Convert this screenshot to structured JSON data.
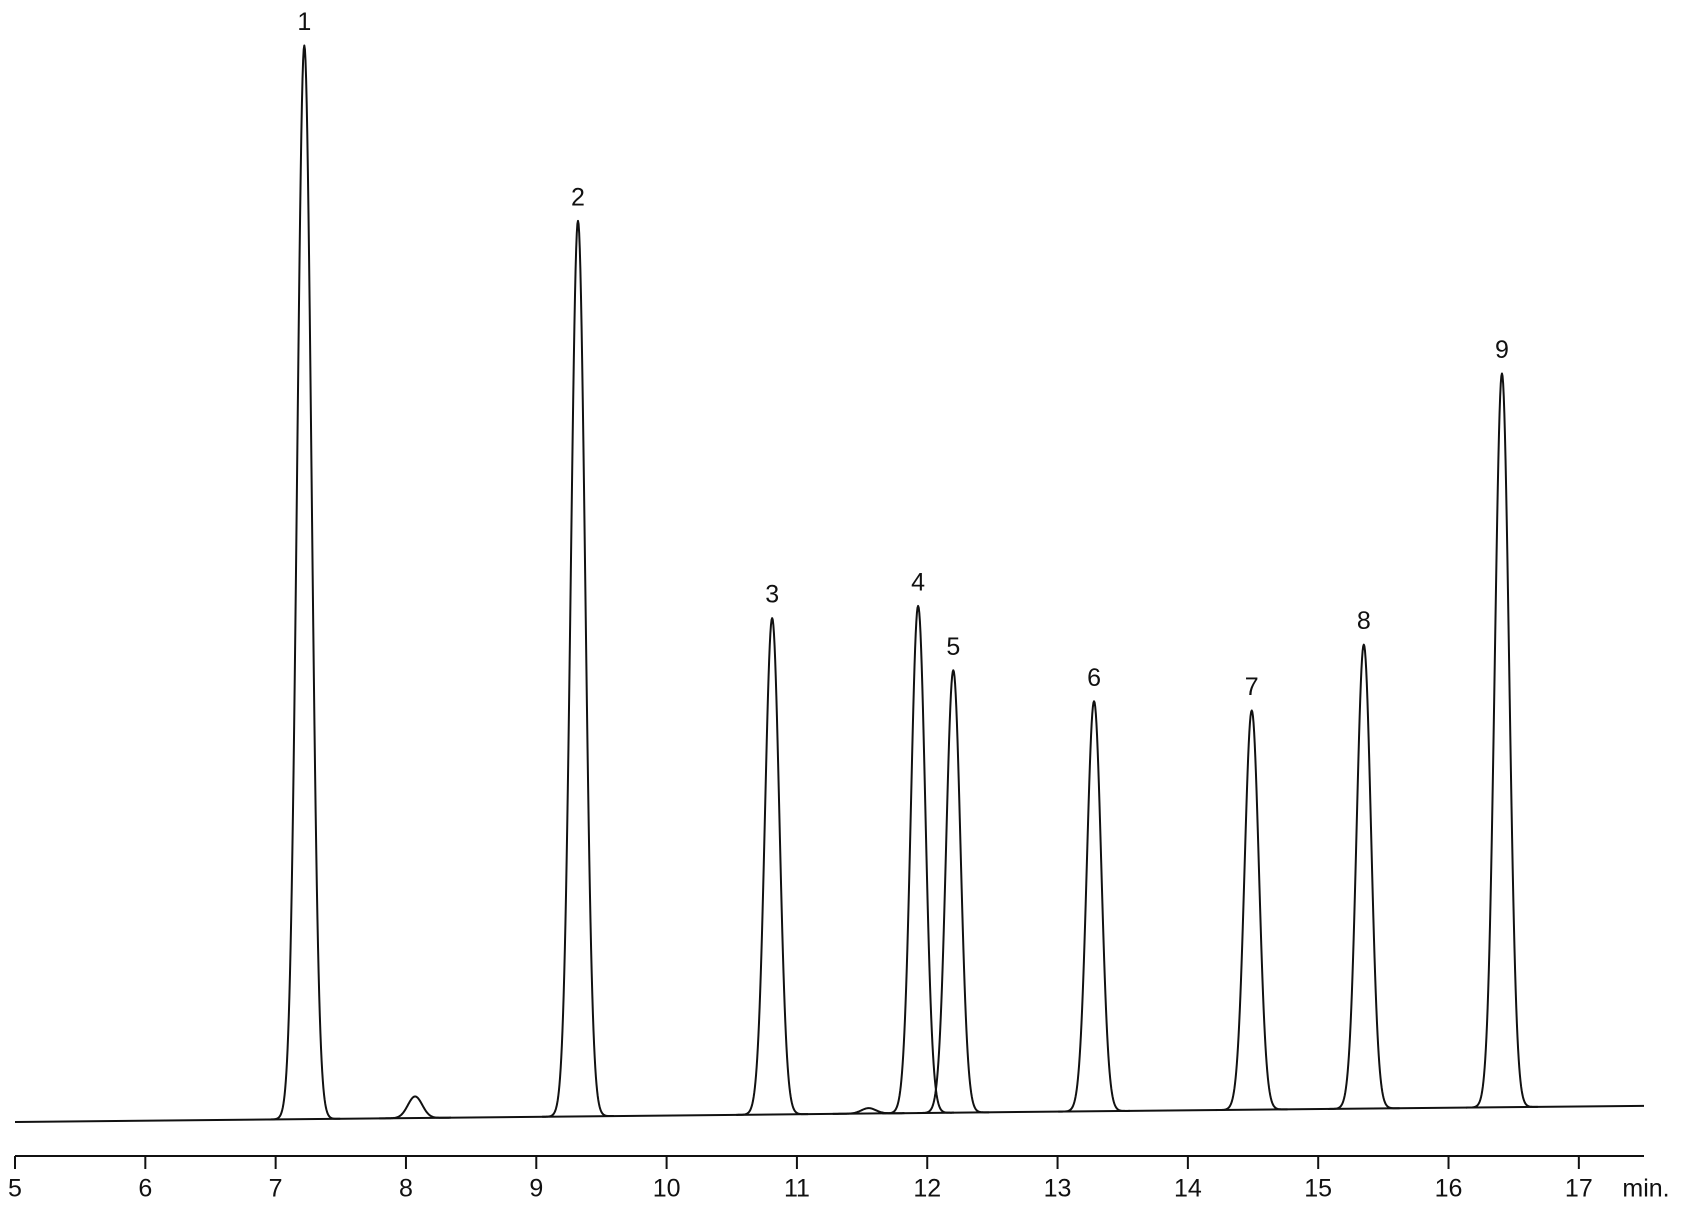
{
  "chart_data": {
    "type": "chromatogram",
    "x_label": "min.",
    "xlim": [
      5,
      17.5
    ],
    "xticks": [
      5,
      6,
      7,
      8,
      9,
      10,
      11,
      12,
      13,
      14,
      15,
      16,
      17
    ],
    "ylim": [
      0,
      100
    ],
    "color": "#111111",
    "baseline": {
      "x": [
        5,
        17.5
      ],
      "values": [
        0,
        1.5
      ]
    },
    "peaks": {
      "labels": [
        "1",
        null,
        "2",
        "3",
        null,
        "4",
        "5",
        "6",
        "7",
        "8",
        "9"
      ],
      "x": [
        7.22,
        8.07,
        9.32,
        10.81,
        11.55,
        11.93,
        12.2,
        13.28,
        14.49,
        15.35,
        16.41
      ],
      "values": [
        99.5,
        2,
        83,
        46,
        0.5,
        47,
        41,
        38,
        37,
        43,
        68
      ]
    }
  }
}
